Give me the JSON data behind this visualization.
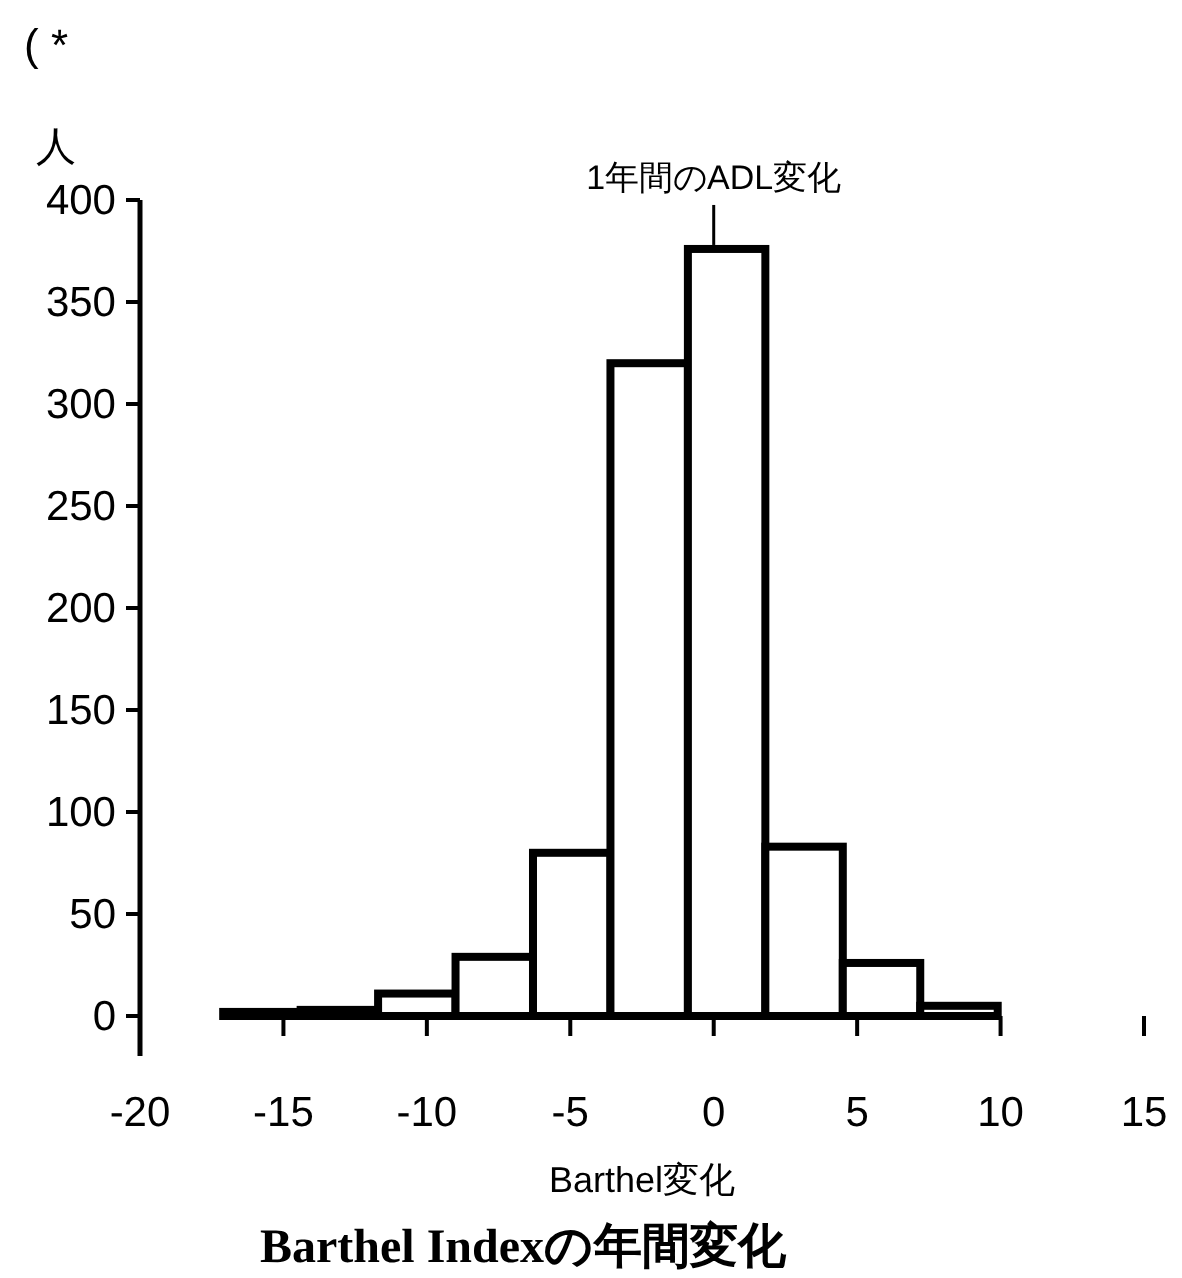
{
  "chart_data": {
    "type": "histogram",
    "title": "Barthel Indexの年間変化",
    "xlabel": "Barthel変化",
    "ylabel": "人",
    "annotations": [
      {
        "text": "1年間のADL変化",
        "x": 0,
        "y": 376
      },
      "( *"
    ],
    "bins": [
      -17.1,
      -14.4,
      -11.7,
      -9,
      -6.3,
      -3.6,
      -0.9,
      1.8,
      4.5,
      7.2,
      9.9
    ],
    "values": [
      2,
      3,
      11,
      29,
      80,
      320,
      376,
      83,
      26,
      5
    ],
    "color": "#ffffff",
    "xlim": [
      -20,
      15
    ],
    "xticks": [
      -20,
      -15,
      -10,
      -5,
      0,
      5,
      10,
      15
    ],
    "ylim": [
      0,
      400
    ],
    "yticks": [
      0,
      50,
      100,
      150,
      200,
      250,
      300,
      350,
      400
    ]
  }
}
